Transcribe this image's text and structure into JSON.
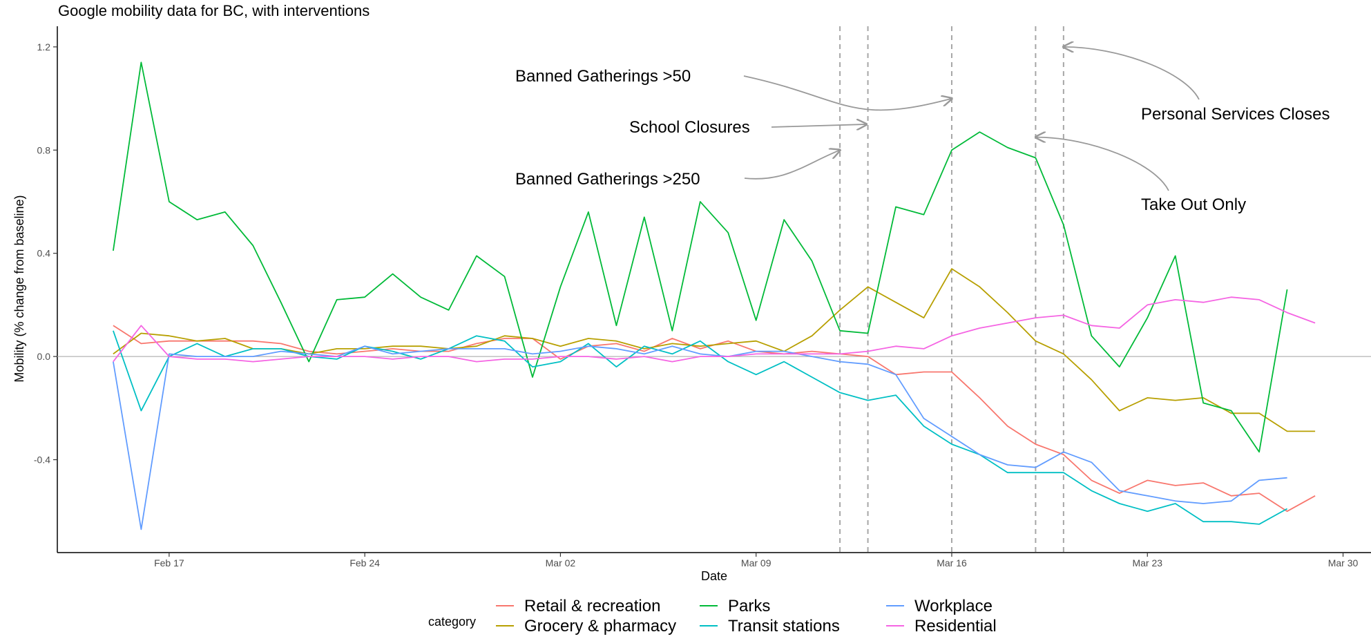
{
  "chart_data": {
    "type": "line",
    "title": "Google mobility data for BC, with interventions",
    "xlabel": "Date",
    "ylabel": "Mobility (% change from baseline)",
    "x_start": "2020-02-15",
    "x_end": "2020-03-29",
    "xlim": [
      "2020-02-13",
      "2020-03-31"
    ],
    "ylim": [
      -0.76,
      1.28
    ],
    "x_ticks": [
      {
        "date": "2020-02-17",
        "label": "Feb 17"
      },
      {
        "date": "2020-02-24",
        "label": "Feb 24"
      },
      {
        "date": "2020-03-02",
        "label": "Mar 02"
      },
      {
        "date": "2020-03-09",
        "label": "Mar 09"
      },
      {
        "date": "2020-03-16",
        "label": "Mar 16"
      },
      {
        "date": "2020-03-23",
        "label": "Mar 23"
      },
      {
        "date": "2020-03-30",
        "label": "Mar 30"
      }
    ],
    "y_ticks": [
      {
        "value": 1.2,
        "label": "1.2"
      },
      {
        "value": 0.8,
        "label": "0.8"
      },
      {
        "value": 0.4,
        "label": "0.4"
      },
      {
        "value": 0.0,
        "label": "0.0"
      },
      {
        "value": -0.4,
        "label": "-0.4"
      }
    ],
    "grid": false,
    "legend": {
      "title": "category",
      "position": "bottom",
      "columns": [
        [
          "Retail & recreation",
          "Grocery & pharmacy"
        ],
        [
          "Parks",
          "Transit stations"
        ],
        [
          "Workplace",
          "Residential"
        ]
      ]
    },
    "series": [
      {
        "name": "Retail & recreation",
        "color": "#F8766D",
        "values": [
          0.12,
          0.05,
          0.06,
          0.06,
          0.06,
          0.06,
          0.05,
          0.02,
          0.01,
          0.02,
          0.03,
          0.02,
          0.02,
          0.05,
          0.07,
          0.07,
          -0.01,
          0.04,
          0.05,
          0.02,
          0.07,
          0.03,
          0.06,
          0.02,
          0.01,
          0.02,
          0.01,
          0.0,
          -0.07,
          -0.06,
          -0.06,
          -0.16,
          -0.27,
          -0.34,
          -0.38,
          -0.48,
          -0.53,
          -0.48,
          -0.5,
          -0.49,
          -0.54,
          -0.53,
          -0.6,
          -0.54
        ]
      },
      {
        "name": "Grocery & pharmacy",
        "color": "#B79F00",
        "values": [
          0.01,
          0.09,
          0.08,
          0.06,
          0.07,
          0.03,
          0.03,
          0.01,
          0.03,
          0.03,
          0.04,
          0.04,
          0.03,
          0.04,
          0.08,
          0.07,
          0.04,
          0.07,
          0.06,
          0.03,
          0.05,
          0.04,
          0.05,
          0.06,
          0.02,
          0.08,
          0.18,
          0.27,
          0.21,
          0.15,
          0.34,
          0.27,
          0.17,
          0.06,
          0.01,
          -0.09,
          -0.21,
          -0.16,
          -0.17,
          -0.16,
          -0.22,
          -0.22,
          -0.29,
          -0.29
        ]
      },
      {
        "name": "Parks",
        "color": "#00BA38",
        "values": [
          0.41,
          1.14,
          0.6,
          0.53,
          0.56,
          0.43,
          0.21,
          -0.02,
          0.22,
          0.23,
          0.32,
          0.23,
          0.18,
          0.39,
          0.31,
          -0.08,
          0.27,
          0.56,
          0.12,
          0.54,
          0.1,
          0.6,
          0.48,
          0.14,
          0.53,
          0.37,
          0.1,
          0.09,
          0.58,
          0.55,
          0.8,
          0.87,
          0.81,
          0.77,
          0.51,
          0.08,
          -0.04,
          0.15,
          0.39,
          -0.18,
          -0.21,
          -0.37,
          0.26
        ]
      },
      {
        "name": "Transit stations",
        "color": "#00BFC4",
        "values": [
          0.1,
          -0.21,
          0.0,
          0.05,
          0.0,
          0.03,
          0.03,
          0.0,
          -0.01,
          0.04,
          0.02,
          -0.01,
          0.03,
          0.08,
          0.06,
          -0.04,
          -0.02,
          0.05,
          -0.04,
          0.04,
          0.01,
          0.06,
          -0.02,
          -0.07,
          -0.02,
          -0.08,
          -0.14,
          -0.17,
          -0.15,
          -0.27,
          -0.34,
          -0.38,
          -0.45,
          -0.45,
          -0.45,
          -0.52,
          -0.57,
          -0.6,
          -0.57,
          -0.64,
          -0.64,
          -0.65,
          -0.59
        ]
      },
      {
        "name": "Workplace",
        "color": "#619CFF",
        "values": [
          -0.02,
          -0.67,
          0.01,
          0.0,
          0.0,
          0.0,
          0.02,
          0.01,
          0.0,
          0.04,
          0.01,
          0.02,
          0.03,
          0.03,
          0.03,
          0.01,
          0.02,
          0.04,
          0.03,
          0.01,
          0.04,
          0.01,
          0.0,
          0.02,
          0.02,
          0.0,
          -0.02,
          -0.03,
          -0.07,
          -0.24,
          -0.31,
          -0.38,
          -0.42,
          -0.43,
          -0.37,
          -0.41,
          -0.52,
          -0.54,
          -0.56,
          -0.57,
          -0.56,
          -0.48,
          -0.47
        ]
      },
      {
        "name": "Residential",
        "color": "#F564E3",
        "values": [
          -0.02,
          0.12,
          0.0,
          -0.01,
          -0.01,
          -0.02,
          -0.01,
          0.0,
          0.0,
          0.0,
          -0.01,
          0.0,
          0.0,
          -0.02,
          -0.01,
          -0.01,
          0.0,
          0.0,
          -0.01,
          0.0,
          -0.02,
          0.0,
          0.0,
          0.01,
          0.01,
          0.01,
          0.01,
          0.02,
          0.04,
          0.03,
          0.08,
          0.11,
          0.13,
          0.15,
          0.16,
          0.12,
          0.11,
          0.2,
          0.22,
          0.21,
          0.23,
          0.22,
          0.17,
          0.13
        ]
      }
    ],
    "interventions": [
      {
        "date": "2020-03-12",
        "label": "Banned Gatherings >250",
        "arrow_y": 0.8
      },
      {
        "date": "2020-03-13",
        "label": "School Closures",
        "arrow_y": 0.9
      },
      {
        "date": "2020-03-16",
        "label": "Banned Gatherings >50",
        "arrow_y": 1.0
      },
      {
        "date": "2020-03-19",
        "label": "Take Out Only",
        "arrow_y": 0.85
      },
      {
        "date": "2020-03-20",
        "label": "Personal Services Closes",
        "arrow_y": 1.2
      }
    ]
  }
}
